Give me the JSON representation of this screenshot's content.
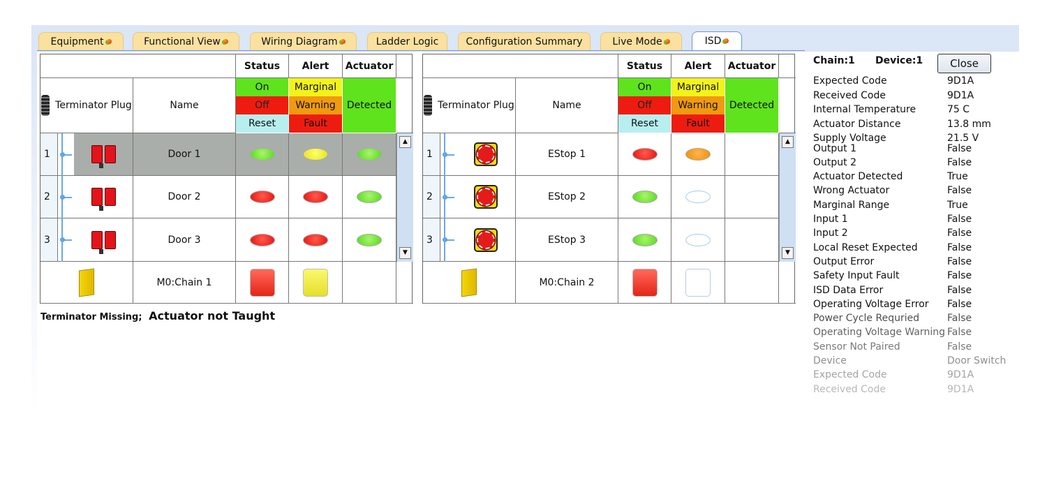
{
  "tabs": [
    {
      "label": "Equipment",
      "dot": true
    },
    {
      "label": "Functional View",
      "dot": true
    },
    {
      "label": "Wiring Diagram",
      "dot": true
    },
    {
      "label": "Ladder Logic",
      "dot": false
    },
    {
      "label": "Configuration Summary",
      "dot": false
    },
    {
      "label": "Live Mode",
      "dot": true
    },
    {
      "label": "ISD",
      "dot": true,
      "active": true
    }
  ],
  "table_headers": {
    "status": "Status",
    "alert": "Alert",
    "actuator": "Actuator",
    "name": "Name",
    "terminator": "Terminator Plug"
  },
  "legend": {
    "on": "On",
    "off": "Off",
    "reset": "Reset",
    "marginal": "Marginal",
    "warning": "Warning",
    "fault": "Fault",
    "detected": "Detected"
  },
  "colors": {
    "green": "#5fe31d",
    "red": "#ee1c10",
    "cyan": "#b7eff0",
    "yellow": "#f3f31c",
    "orange": "#f09a10",
    "selected": "#a9aeab"
  },
  "chains": [
    {
      "device_icon": "door-switch",
      "rows": [
        {
          "num": "1",
          "name": "Door 1",
          "status": "green",
          "alert": "yellow",
          "actuator": "green",
          "selected": true
        },
        {
          "num": "2",
          "name": "Door 2",
          "status": "red",
          "alert": "red",
          "actuator": "green"
        },
        {
          "num": "3",
          "name": "Door 3",
          "status": "red",
          "alert": "red",
          "actuator": "green"
        }
      ],
      "module": {
        "name": "M0:Chain 1",
        "status": "red",
        "alert": "yellow"
      }
    },
    {
      "device_icon": "estop",
      "rows": [
        {
          "num": "1",
          "name": "EStop 1",
          "status": "red",
          "alert": "orange",
          "actuator": ""
        },
        {
          "num": "2",
          "name": "EStop 2",
          "status": "green",
          "alert": "white",
          "actuator": ""
        },
        {
          "num": "3",
          "name": "EStop 3",
          "status": "green",
          "alert": "white",
          "actuator": ""
        }
      ],
      "module": {
        "name": "M0:Chain 2",
        "status": "red",
        "alert": "white"
      }
    }
  ],
  "footer": {
    "msg1": "Terminator Missing;",
    "msg2": "Actuator not Taught"
  },
  "panel": {
    "chain": "Chain:1",
    "device": "Device:1",
    "close_label": "Close",
    "details": [
      [
        "Expected Code",
        "9D1A"
      ],
      [
        "Received Code",
        "9D1A"
      ],
      [
        "Internal Temperature",
        "75 C"
      ],
      [
        "Actuator Distance",
        "13.8 mm"
      ],
      [
        "Supply Voltage",
        "21.5 V"
      ],
      [
        "Output 1",
        "False"
      ],
      [
        "Output 2",
        "False"
      ],
      [
        "Actuator Detected",
        "True"
      ],
      [
        "Wrong Actuator",
        "False"
      ],
      [
        "Marginal Range",
        "True"
      ],
      [
        "Input 1",
        "False"
      ],
      [
        "Input 2",
        "False"
      ],
      [
        "Local Reset Expected",
        "False"
      ],
      [
        "Output Error",
        "False"
      ],
      [
        "Safety Input Fault",
        "False"
      ],
      [
        "ISD Data Error",
        "False"
      ],
      [
        "Operating Voltage Error",
        "False"
      ],
      [
        "Power Cycle Requried",
        "False"
      ],
      [
        "Operating Voltage Warning",
        "False"
      ],
      [
        "Sensor Not Paired",
        "False"
      ],
      [
        "Device",
        "Door Switch"
      ],
      [
        "Expected Code",
        "9D1A"
      ],
      [
        "Received Code",
        "9D1A"
      ]
    ]
  }
}
